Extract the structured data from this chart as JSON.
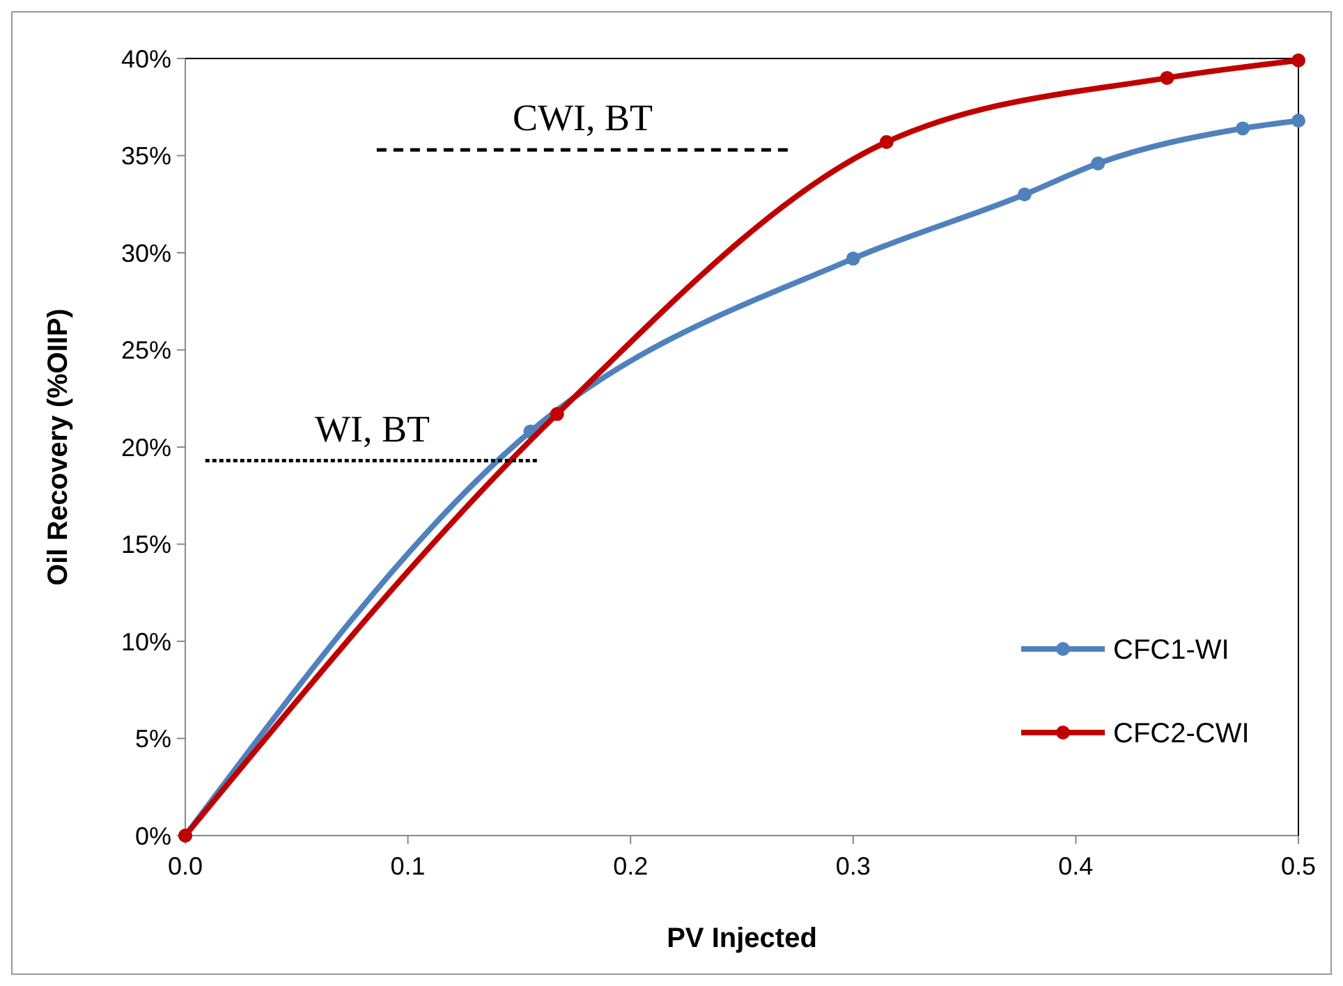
{
  "chart_data": {
    "type": "line",
    "xlabel": "PV Injected",
    "ylabel": "Oil Recovery (%OIIP)",
    "xlim": [
      0,
      0.5
    ],
    "xticks": [
      {
        "value": 0,
        "label": "0.0"
      },
      0.1,
      0.2,
      0.3,
      0.4,
      0.5
    ],
    "ylim": [
      0,
      40
    ],
    "yticks": [
      {
        "value": 0,
        "label": "0%"
      },
      {
        "value": 5,
        "label": "5%"
      },
      {
        "value": 10,
        "label": "10%"
      },
      {
        "value": 15,
        "label": "15%"
      },
      {
        "value": 20,
        "label": "20%"
      },
      {
        "value": 25,
        "label": "25%"
      },
      {
        "value": 30,
        "label": "30%"
      },
      {
        "value": 35,
        "label": "35%"
      },
      {
        "value": 40,
        "label": "40%"
      }
    ],
    "legend": "right",
    "grid": false,
    "series": [
      {
        "name": "CFC1-WI",
        "color": "#4f81bd",
        "marker": "circle",
        "x": [
          0,
          0.155,
          0.3,
          0.377,
          0.41,
          0.475,
          0.5
        ],
        "values": [
          0,
          20.8,
          29.7,
          33.0,
          34.6,
          36.4,
          36.8
        ]
      },
      {
        "name": "CFC2-CWI",
        "color": "#c00000",
        "marker": "circle",
        "x": [
          0,
          0.167,
          0.315,
          0.441,
          0.5
        ],
        "values": [
          0,
          21.7,
          35.7,
          39.0,
          39.9
        ]
      },
      {
        "color": "#000000",
        "marker": "none",
        "line_style": "dashed",
        "x": [
          0.086,
          0.271
        ],
        "values": [
          35.3,
          35.3
        ]
      },
      {
        "color": "#000000",
        "marker": "none",
        "line_style": "dotted",
        "x": [
          0.009,
          0.159
        ],
        "values": [
          19.3,
          19.3
        ]
      }
    ],
    "annotations": [
      "CWI, BT",
      "WI, BT"
    ]
  }
}
